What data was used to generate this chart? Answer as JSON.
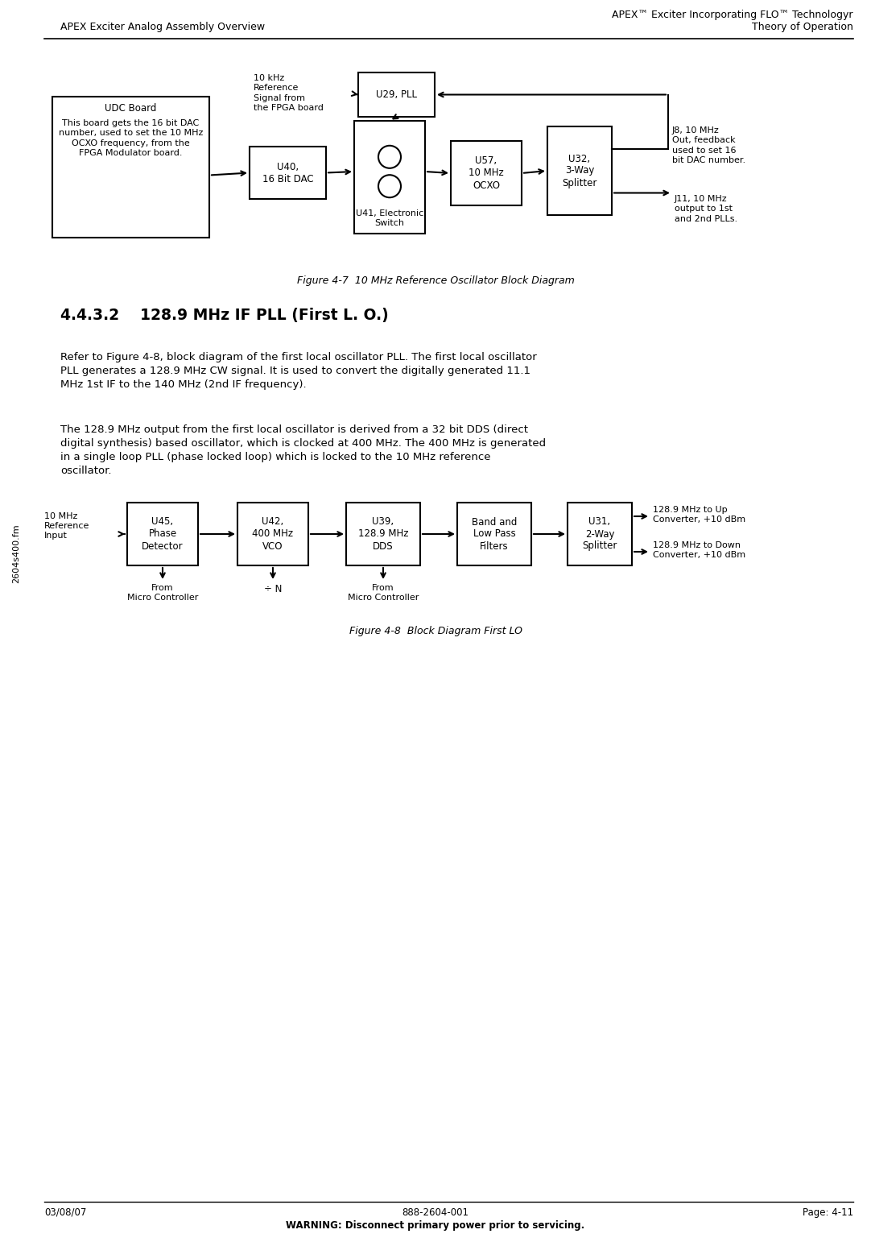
{
  "bg_color": "#ffffff",
  "header_top_right": "APEX™ Exciter Incorporating FLO™ Technologyr",
  "header_bot_left": "APEX Exciter Analog Assembly Overview",
  "header_bot_right": "Theory of Operation",
  "footer_left": "03/08/07",
  "footer_center": "888-2604-001",
  "footer_right": "Page: 4-11",
  "footer_warning": "WARNING: Disconnect primary power prior to servicing.",
  "sidebar_text": "2604s400.fm",
  "fig1_caption": "Figure 4-7  10 MHz Reference Oscillator Block Diagram",
  "fig2_caption": "Figure 4-8  Block Diagram First LO",
  "section_title": "4.4.3.2    128.9 MHz IF PLL (First L. O.)",
  "para1_line1": "Refer to Figure 4-8, block diagram of the first local oscillator PLL. The first local oscillator",
  "para1_line2": "PLL generates a 128.9 MHz CW signal. It is used to convert the digitally generated 11.1",
  "para1_line3": "MHz 1st IF to the 140 MHz (2nd IF frequency).",
  "para2_line1": "The 128.9 MHz output from the first local oscillator is derived from a 32 bit DDS (direct",
  "para2_line2": "digital synthesis) based oscillator, which is clocked at 400 MHz. The 400 MHz is generated",
  "para2_line3": "in a single loop PLL (phase locked loop) which is locked to the 10 MHz reference",
  "para2_line4": "oscillator.",
  "font_size_body": 9.5,
  "font_size_small": 8.5,
  "font_size_caption": 9.0,
  "font_size_section": 13.5,
  "font_size_header": 9.0,
  "font_size_footer": 8.5,
  "font_size_diagram": 8.5,
  "font_size_diagram_sm": 8.0
}
